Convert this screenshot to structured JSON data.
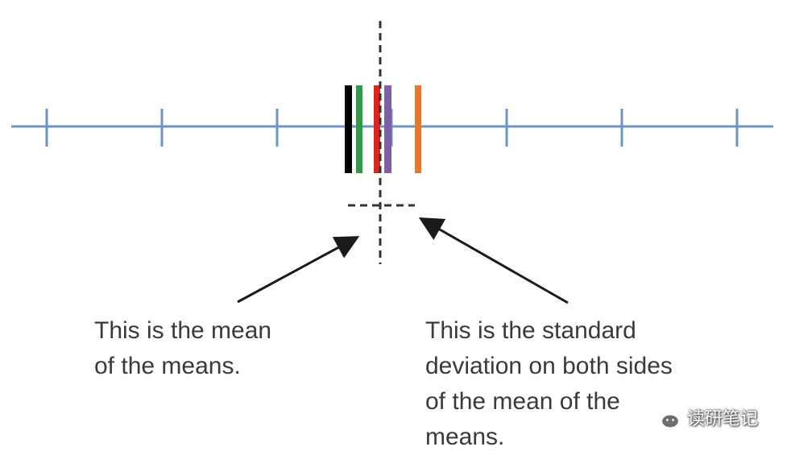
{
  "diagram": {
    "colors": {
      "axis": "#6b93c6",
      "black_bar": "#000000",
      "green_bar": "#2e9b46",
      "red_bar": "#e2231a",
      "purple_bar": "#7c5fa4",
      "orange_bar": "#e7782b",
      "dashed": "#333333",
      "arrow": "#1a1a1a",
      "text": "#3a3a3a"
    },
    "number_line": {
      "tick_count": 7
    },
    "mean_bars": [
      {
        "color_name": "black"
      },
      {
        "color_name": "green"
      },
      {
        "color_name": "red"
      },
      {
        "color_name": "purple"
      },
      {
        "color_name": "orange"
      }
    ],
    "annotations": {
      "left": {
        "line1": "This is the mean",
        "line2": "of the means."
      },
      "right": {
        "line1": "This is the standard",
        "line2": "deviation on both sides",
        "line3": "of the mean of the",
        "line4": "means."
      }
    },
    "watermark": {
      "text": "读研笔记",
      "icon": "wechat-icon"
    }
  }
}
